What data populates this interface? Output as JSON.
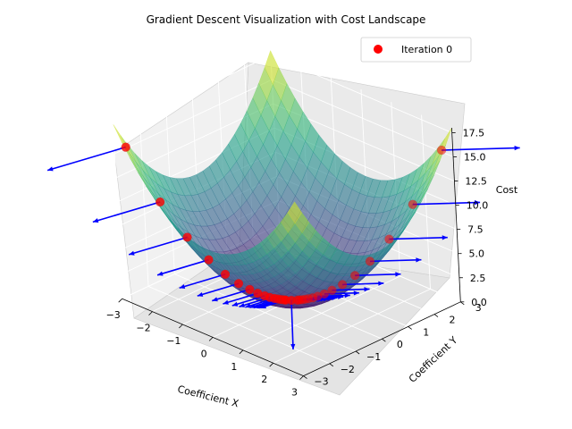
{
  "chart_data": {
    "type": "scatter",
    "title": "Gradient Descent Visualization with Cost Landscape",
    "xlabel": "Coefficient X",
    "ylabel": "Coefficient Y",
    "zlabel": "Cost",
    "xlim": [
      -3,
      3
    ],
    "ylim": [
      -3,
      3
    ],
    "zlim": [
      0,
      18
    ],
    "x_ticks": [
      "−3",
      "−2",
      "−1",
      "0",
      "1",
      "2",
      "3"
    ],
    "y_ticks": [
      "−3",
      "−2",
      "−1",
      "0",
      "1",
      "2",
      "3"
    ],
    "z_ticks": [
      "0.0",
      "2.5",
      "5.0",
      "7.5",
      "10.0",
      "12.5",
      "15.0",
      "17.5"
    ],
    "grid": true,
    "legend_position": "top-right",
    "surface": {
      "function": "x^2 + y^2",
      "colormap": "viridis",
      "alpha": 0.6
    },
    "series": [
      {
        "name": "Iteration 0",
        "color": "#ff0000",
        "points": [
          {
            "x": -2.8,
            "y": -2.8,
            "cost": 15.68
          },
          {
            "x": -2.24,
            "y": -2.24,
            "cost": 10.04
          },
          {
            "x": -1.79,
            "y": -1.79,
            "cost": 6.42
          },
          {
            "x": -1.43,
            "y": -1.43,
            "cost": 4.11
          },
          {
            "x": -1.15,
            "y": -1.15,
            "cost": 2.63
          },
          {
            "x": -0.92,
            "y": -0.92,
            "cost": 1.68
          },
          {
            "x": -0.73,
            "y": -0.73,
            "cost": 1.08
          },
          {
            "x": -0.59,
            "y": -0.59,
            "cost": 0.69
          },
          {
            "x": -0.47,
            "y": -0.47,
            "cost": 0.44
          },
          {
            "x": -0.38,
            "y": -0.38,
            "cost": 0.28
          },
          {
            "x": -0.3,
            "y": -0.3,
            "cost": 0.18
          },
          {
            "x": -0.24,
            "y": -0.24,
            "cost": 0.12
          },
          {
            "x": -0.19,
            "y": -0.19,
            "cost": 0.07
          },
          {
            "x": -0.15,
            "y": -0.15,
            "cost": 0.05
          },
          {
            "x": -0.12,
            "y": -0.12,
            "cost": 0.03
          },
          {
            "x": -0.1,
            "y": -0.1,
            "cost": 0.02
          },
          {
            "x": 0.0,
            "y": 0.0,
            "cost": 0.0
          },
          {
            "x": 0.1,
            "y": 0.1,
            "cost": 0.02
          },
          {
            "x": 0.12,
            "y": 0.12,
            "cost": 0.03
          },
          {
            "x": 0.15,
            "y": 0.15,
            "cost": 0.05
          },
          {
            "x": 0.19,
            "y": 0.19,
            "cost": 0.07
          },
          {
            "x": 0.24,
            "y": 0.24,
            "cost": 0.12
          },
          {
            "x": 0.3,
            "y": 0.3,
            "cost": 0.18
          },
          {
            "x": 0.38,
            "y": 0.38,
            "cost": 0.28
          },
          {
            "x": 0.47,
            "y": 0.47,
            "cost": 0.44
          },
          {
            "x": 0.59,
            "y": 0.59,
            "cost": 0.69
          },
          {
            "x": 0.73,
            "y": 0.73,
            "cost": 1.08
          },
          {
            "x": 0.92,
            "y": 0.92,
            "cost": 1.68
          },
          {
            "x": 1.15,
            "y": 1.15,
            "cost": 2.63
          },
          {
            "x": 1.43,
            "y": 1.43,
            "cost": 4.11
          },
          {
            "x": 1.79,
            "y": 1.79,
            "cost": 6.42
          },
          {
            "x": 2.24,
            "y": 2.24,
            "cost": 10.04
          },
          {
            "x": 2.8,
            "y": 2.8,
            "cost": 15.68
          }
        ]
      }
    ],
    "gradient_arrows": {
      "color": "#0000ff"
    }
  }
}
